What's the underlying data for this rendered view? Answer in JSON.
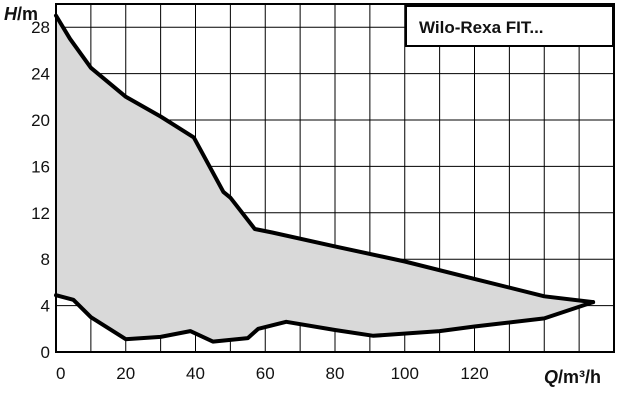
{
  "chart_data": {
    "type": "area",
    "title": "Wilo-Rexa FIT...",
    "xlabel": {
      "var": "Q",
      "unit": "/m³/h"
    },
    "ylabel": {
      "var": "H",
      "unit": "/m"
    },
    "xlim": [
      0,
      160
    ],
    "ylim": [
      0,
      30
    ],
    "grid": true,
    "colors": {
      "fill": "#d9d9d9",
      "line": "#000000",
      "grid": "#000000"
    },
    "x_ticks": [
      0,
      20,
      40,
      60,
      80,
      100,
      120
    ],
    "y_ticks": [
      0,
      4,
      8,
      12,
      16,
      20,
      24,
      28
    ],
    "series": [
      {
        "values": [
          [
            0,
            29
          ],
          [
            4,
            27
          ],
          [
            10,
            24.5
          ],
          [
            20,
            22
          ],
          [
            30,
            20.3
          ],
          [
            39.5,
            18.5
          ],
          [
            48,
            13.8
          ],
          [
            50,
            13.3
          ],
          [
            57,
            10.6
          ],
          [
            62,
            10.3
          ],
          [
            80,
            9.1
          ],
          [
            100,
            7.8
          ],
          [
            120,
            6.3
          ],
          [
            140,
            4.8
          ],
          [
            154,
            4.3
          ]
        ]
      },
      {
        "values": [
          [
            0,
            4.9
          ],
          [
            5,
            4.5
          ],
          [
            10,
            3
          ],
          [
            20,
            1.1
          ],
          [
            30,
            1.3
          ],
          [
            38.5,
            1.8
          ],
          [
            45,
            0.9
          ],
          [
            55,
            1.2
          ],
          [
            58,
            2
          ],
          [
            66,
            2.6
          ],
          [
            80,
            1.9
          ],
          [
            91,
            1.4
          ],
          [
            110,
            1.8
          ],
          [
            120,
            2.2
          ],
          [
            140,
            2.9
          ],
          [
            154,
            4.3
          ]
        ]
      }
    ]
  }
}
